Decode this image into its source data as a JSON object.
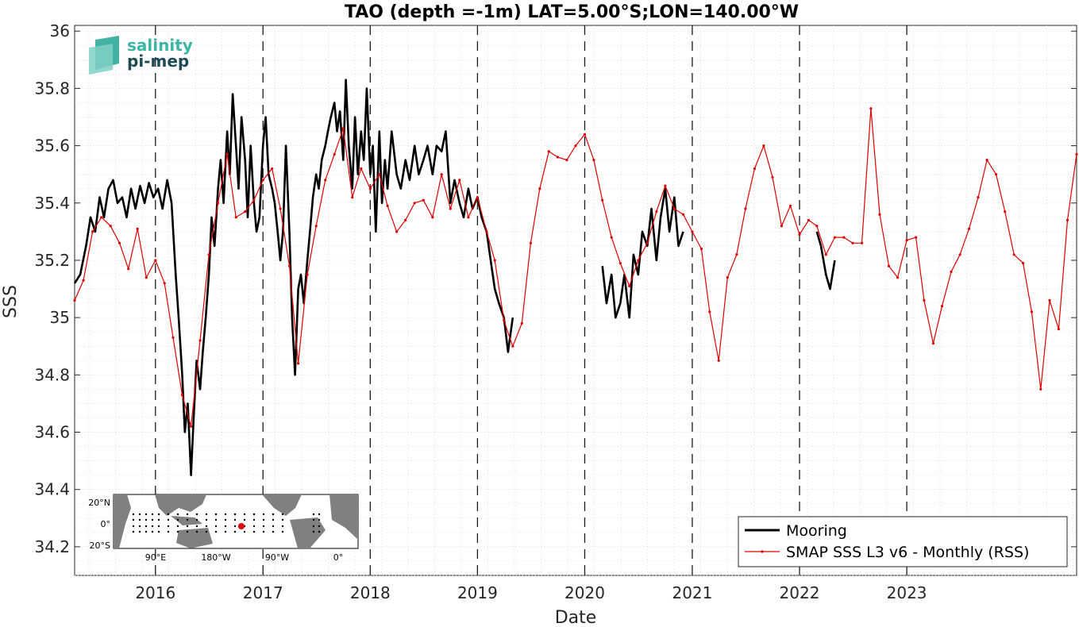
{
  "chart_data": {
    "type": "line",
    "title": "TAO (depth =-1m) LAT=5.00°S;LON=140.00°W",
    "xlabel": "Date",
    "ylabel": "SSS",
    "x_range": [
      "2015-04-01",
      "2024-08-01"
    ],
    "ylim": [
      34.1,
      36.02
    ],
    "y_ticks": [
      34.2,
      34.4,
      34.6,
      34.8,
      35,
      35.2,
      35.4,
      35.6,
      35.8,
      36
    ],
    "y_tick_labels": [
      "34.2",
      "34.4",
      "34.6",
      "34.8",
      "35",
      "35.2",
      "35.4",
      "35.6",
      "35.8",
      "36"
    ],
    "x_ticks": [
      "2016-01-01",
      "2017-01-01",
      "2018-01-01",
      "2019-01-01",
      "2020-01-01",
      "2021-01-01",
      "2022-01-01",
      "2023-01-01"
    ],
    "x_tick_labels": [
      "2016",
      "2017",
      "2018",
      "2019",
      "2020",
      "2021",
      "2022",
      "2023"
    ],
    "grid": "dotted minor grid; dashed vertical lines at year boundaries",
    "legend": {
      "placement": "bottom-right",
      "entries": [
        "Mooring",
        "SMAP SSS L3 v6 - Monthly (RSS)"
      ]
    },
    "colors": {
      "Mooring": "#000000",
      "SMAP SSS L3 v6 - Monthly (RSS)": "#e00000"
    },
    "series": [
      {
        "name": "Mooring",
        "points": [
          [
            "2015-04-01",
            35.12
          ],
          [
            "2015-04-20",
            35.15
          ],
          [
            "2015-05-10",
            35.25
          ],
          [
            "2015-05-25",
            35.35
          ],
          [
            "2015-06-10",
            35.3
          ],
          [
            "2015-06-25",
            35.42
          ],
          [
            "2015-07-10",
            35.35
          ],
          [
            "2015-07-25",
            35.45
          ],
          [
            "2015-08-10",
            35.48
          ],
          [
            "2015-08-25",
            35.4
          ],
          [
            "2015-09-10",
            35.42
          ],
          [
            "2015-09-25",
            35.35
          ],
          [
            "2015-10-10",
            35.45
          ],
          [
            "2015-10-25",
            35.38
          ],
          [
            "2015-11-10",
            35.46
          ],
          [
            "2015-11-25",
            35.4
          ],
          [
            "2015-12-10",
            35.47
          ],
          [
            "2015-12-25",
            35.42
          ],
          [
            "2016-01-10",
            35.45
          ],
          [
            "2016-01-25",
            35.38
          ],
          [
            "2016-02-10",
            35.48
          ],
          [
            "2016-02-25",
            35.4
          ],
          [
            "2016-03-10",
            35.15
          ],
          [
            "2016-03-20",
            35.0
          ],
          [
            "2016-04-01",
            34.8
          ],
          [
            "2016-04-10",
            34.6
          ],
          [
            "2016-04-20",
            34.7
          ],
          [
            "2016-05-01",
            34.45
          ],
          [
            "2016-05-10",
            34.65
          ],
          [
            "2016-05-20",
            34.85
          ],
          [
            "2016-06-01",
            34.75
          ],
          [
            "2016-06-10",
            34.88
          ],
          [
            "2016-06-20",
            35.0
          ],
          [
            "2016-07-01",
            35.15
          ],
          [
            "2016-07-10",
            35.35
          ],
          [
            "2016-07-20",
            35.25
          ],
          [
            "2016-08-01",
            35.45
          ],
          [
            "2016-08-10",
            35.55
          ],
          [
            "2016-08-20",
            35.4
          ],
          [
            "2016-09-01",
            35.65
          ],
          [
            "2016-09-10",
            35.5
          ],
          [
            "2016-09-20",
            35.78
          ],
          [
            "2016-10-01",
            35.6
          ],
          [
            "2016-10-10",
            35.45
          ],
          [
            "2016-10-20",
            35.7
          ],
          [
            "2016-11-01",
            35.55
          ],
          [
            "2016-11-10",
            35.35
          ],
          [
            "2016-11-20",
            35.6
          ],
          [
            "2016-12-01",
            35.4
          ],
          [
            "2016-12-10",
            35.3
          ],
          [
            "2016-12-20",
            35.35
          ],
          [
            "2017-01-01",
            35.6
          ],
          [
            "2017-01-10",
            35.7
          ],
          [
            "2017-01-20",
            35.5
          ],
          [
            "2017-02-01",
            35.45
          ],
          [
            "2017-02-10",
            35.4
          ],
          [
            "2017-02-20",
            35.3
          ],
          [
            "2017-03-01",
            35.2
          ],
          [
            "2017-03-10",
            35.3
          ],
          [
            "2017-03-20",
            35.6
          ],
          [
            "2017-04-01",
            35.3
          ],
          [
            "2017-04-10",
            35.0
          ],
          [
            "2017-04-20",
            34.8
          ],
          [
            "2017-05-01",
            35.1
          ],
          [
            "2017-05-10",
            35.15
          ],
          [
            "2017-05-20",
            35.05
          ],
          [
            "2017-06-01",
            35.2
          ],
          [
            "2017-06-10",
            35.3
          ],
          [
            "2017-06-20",
            35.42
          ],
          [
            "2017-07-01",
            35.5
          ],
          [
            "2017-07-10",
            35.45
          ],
          [
            "2017-07-20",
            35.55
          ],
          [
            "2017-08-01",
            35.6
          ],
          [
            "2017-08-10",
            35.65
          ],
          [
            "2017-08-20",
            35.7
          ],
          [
            "2017-09-01",
            35.75
          ],
          [
            "2017-09-10",
            35.65
          ],
          [
            "2017-09-20",
            35.72
          ],
          [
            "2017-10-01",
            35.55
          ],
          [
            "2017-10-10",
            35.83
          ],
          [
            "2017-10-20",
            35.6
          ],
          [
            "2017-11-01",
            35.45
          ],
          [
            "2017-11-10",
            35.7
          ],
          [
            "2017-11-20",
            35.5
          ],
          [
            "2017-12-01",
            35.65
          ],
          [
            "2017-12-10",
            35.55
          ],
          [
            "2017-12-20",
            35.8
          ],
          [
            "2018-01-01",
            35.5
          ],
          [
            "2018-01-10",
            35.6
          ],
          [
            "2018-01-20",
            35.3
          ],
          [
            "2018-02-01",
            35.65
          ],
          [
            "2018-02-10",
            35.4
          ],
          [
            "2018-02-20",
            35.55
          ],
          [
            "2018-03-01",
            35.45
          ],
          [
            "2018-03-15",
            35.65
          ],
          [
            "2018-04-01",
            35.5
          ],
          [
            "2018-04-15",
            35.45
          ],
          [
            "2018-05-01",
            35.55
          ],
          [
            "2018-05-15",
            35.48
          ],
          [
            "2018-06-01",
            35.6
          ],
          [
            "2018-06-15",
            35.5
          ],
          [
            "2018-07-01",
            35.55
          ],
          [
            "2018-07-15",
            35.6
          ],
          [
            "2018-08-01",
            35.5
          ],
          [
            "2018-08-15",
            35.6
          ],
          [
            "2018-09-01",
            35.58
          ],
          [
            "2018-09-15",
            35.65
          ],
          [
            "2018-10-01",
            35.4
          ],
          [
            "2018-10-15",
            35.48
          ],
          [
            "2018-11-01",
            35.4
          ],
          [
            "2018-11-15",
            35.35
          ],
          [
            "2018-12-01",
            35.45
          ],
          [
            "2018-12-15",
            35.38
          ],
          [
            "2019-01-01",
            35.42
          ],
          [
            "2019-01-15",
            35.35
          ],
          [
            "2019-02-01",
            35.3
          ],
          [
            "2019-02-15",
            35.2
          ],
          [
            "2019-03-01",
            35.1
          ],
          [
            "2019-03-15",
            35.05
          ],
          [
            "2019-04-01",
            35.0
          ],
          [
            "2019-04-15",
            34.88
          ],
          [
            "2019-05-01",
            35.0
          ],
          null,
          [
            "2020-03-01",
            35.18
          ],
          [
            "2020-03-15",
            35.05
          ],
          [
            "2020-04-01",
            35.15
          ],
          [
            "2020-04-15",
            35.0
          ],
          [
            "2020-05-01",
            35.05
          ],
          [
            "2020-05-15",
            35.15
          ],
          [
            "2020-06-01",
            35.0
          ],
          [
            "2020-06-15",
            35.22
          ],
          [
            "2020-07-01",
            35.15
          ],
          [
            "2020-07-15",
            35.3
          ],
          [
            "2020-08-01",
            35.25
          ],
          [
            "2020-08-15",
            35.38
          ],
          [
            "2020-09-01",
            35.2
          ],
          [
            "2020-09-15",
            35.35
          ],
          [
            "2020-10-01",
            35.45
          ],
          [
            "2020-10-15",
            35.3
          ],
          [
            "2020-11-01",
            35.42
          ],
          [
            "2020-11-15",
            35.25
          ],
          [
            "2020-12-01",
            35.3
          ],
          null,
          [
            "2022-03-01",
            35.3
          ],
          [
            "2022-03-15",
            35.25
          ],
          [
            "2022-04-01",
            35.15
          ],
          [
            "2022-04-15",
            35.1
          ],
          [
            "2022-05-01",
            35.2
          ]
        ]
      },
      {
        "name": "SMAP SSS L3 v6 - Monthly (RSS)",
        "points": [
          [
            "2015-04-01",
            35.06
          ],
          [
            "2015-05-01",
            35.13
          ],
          [
            "2015-06-01",
            35.3
          ],
          [
            "2015-07-01",
            35.35
          ],
          [
            "2015-08-01",
            35.32
          ],
          [
            "2015-09-01",
            35.26
          ],
          [
            "2015-10-01",
            35.17
          ],
          [
            "2015-11-01",
            35.31
          ],
          [
            "2015-12-01",
            35.14
          ],
          [
            "2016-01-01",
            35.2
          ],
          [
            "2016-02-01",
            35.12
          ],
          [
            "2016-03-01",
            34.93
          ],
          [
            "2016-04-01",
            34.73
          ],
          [
            "2016-05-01",
            34.62
          ],
          [
            "2016-06-01",
            34.92
          ],
          [
            "2016-07-01",
            35.22
          ],
          [
            "2016-08-01",
            35.4
          ],
          [
            "2016-09-01",
            35.57
          ],
          [
            "2016-10-01",
            35.35
          ],
          [
            "2016-11-01",
            35.37
          ],
          [
            "2016-12-01",
            35.41
          ],
          [
            "2017-01-01",
            35.48
          ],
          [
            "2017-02-01",
            35.52
          ],
          [
            "2017-03-01",
            35.38
          ],
          [
            "2017-04-01",
            35.18
          ],
          [
            "2017-05-01",
            34.84
          ],
          [
            "2017-06-01",
            35.15
          ],
          [
            "2017-07-01",
            35.32
          ],
          [
            "2017-08-01",
            35.48
          ],
          [
            "2017-09-01",
            35.57
          ],
          [
            "2017-10-01",
            35.66
          ],
          [
            "2017-11-01",
            35.42
          ],
          [
            "2017-12-01",
            35.52
          ],
          [
            "2018-01-01",
            35.45
          ],
          [
            "2018-02-01",
            35.5
          ],
          [
            "2018-03-01",
            35.39
          ],
          [
            "2018-04-01",
            35.3
          ],
          [
            "2018-05-01",
            35.34
          ],
          [
            "2018-06-01",
            35.4
          ],
          [
            "2018-07-01",
            35.41
          ],
          [
            "2018-08-01",
            35.35
          ],
          [
            "2018-09-01",
            35.5
          ],
          [
            "2018-10-01",
            35.38
          ],
          [
            "2018-11-01",
            35.48
          ],
          [
            "2018-12-01",
            35.35
          ],
          [
            "2019-01-01",
            35.42
          ],
          [
            "2019-02-01",
            35.3
          ],
          [
            "2019-03-01",
            35.2
          ],
          [
            "2019-04-01",
            34.99
          ],
          [
            "2019-05-01",
            34.9
          ],
          [
            "2019-06-01",
            34.98
          ],
          [
            "2019-07-01",
            35.26
          ],
          [
            "2019-08-01",
            35.45
          ],
          [
            "2019-09-01",
            35.58
          ],
          [
            "2019-10-01",
            35.56
          ],
          [
            "2019-11-01",
            35.55
          ],
          [
            "2019-12-01",
            35.6
          ],
          [
            "2020-01-01",
            35.64
          ],
          [
            "2020-02-01",
            35.55
          ],
          [
            "2020-03-01",
            35.41
          ],
          [
            "2020-04-01",
            35.28
          ],
          [
            "2020-05-01",
            35.19
          ],
          [
            "2020-06-01",
            35.11
          ],
          [
            "2020-07-01",
            35.2
          ],
          [
            "2020-08-01",
            35.26
          ],
          [
            "2020-09-01",
            35.37
          ],
          [
            "2020-10-01",
            35.46
          ],
          [
            "2020-11-01",
            35.38
          ],
          [
            "2020-12-01",
            35.36
          ],
          [
            "2021-01-01",
            35.3
          ],
          [
            "2021-02-01",
            35.24
          ],
          [
            "2021-03-01",
            35.02
          ],
          [
            "2021-04-01",
            34.85
          ],
          [
            "2021-05-01",
            35.14
          ],
          [
            "2021-06-01",
            35.22
          ],
          [
            "2021-07-01",
            35.38
          ],
          [
            "2021-08-01",
            35.52
          ],
          [
            "2021-09-01",
            35.6
          ],
          [
            "2021-10-01",
            35.49
          ],
          [
            "2021-11-01",
            35.32
          ],
          [
            "2021-12-01",
            35.39
          ],
          [
            "2022-01-01",
            35.29
          ],
          [
            "2022-02-01",
            35.34
          ],
          [
            "2022-03-01",
            35.32
          ],
          [
            "2022-04-01",
            35.22
          ],
          [
            "2022-05-01",
            35.28
          ],
          [
            "2022-06-01",
            35.28
          ],
          [
            "2022-07-01",
            35.26
          ],
          [
            "2022-08-01",
            35.26
          ],
          [
            "2022-09-01",
            35.73
          ],
          [
            "2022-10-01",
            35.36
          ],
          [
            "2022-11-01",
            35.18
          ],
          [
            "2022-12-01",
            35.14
          ],
          [
            "2023-01-01",
            35.27
          ],
          [
            "2023-02-01",
            35.28
          ],
          [
            "2023-03-01",
            35.06
          ],
          [
            "2023-04-01",
            34.91
          ],
          [
            "2023-05-01",
            35.04
          ],
          [
            "2023-06-01",
            35.16
          ],
          [
            "2023-07-01",
            35.22
          ],
          [
            "2023-08-01",
            35.31
          ],
          [
            "2023-09-01",
            35.42
          ],
          [
            "2023-10-01",
            35.55
          ],
          [
            "2023-11-01",
            35.5
          ],
          [
            "2023-12-01",
            35.37
          ],
          [
            "2024-01-01",
            35.22
          ],
          [
            "2024-02-01",
            35.19
          ],
          [
            "2024-03-01",
            35.02
          ],
          [
            "2024-04-01",
            34.75
          ],
          [
            "2024-05-01",
            35.06
          ],
          [
            "2024-06-01",
            34.96
          ],
          [
            "2024-07-01",
            35.34
          ],
          [
            "2024-08-01",
            35.57
          ]
        ]
      }
    ]
  },
  "logo": {
    "line1": "salinity",
    "line2": "pi-mep"
  },
  "inset_map": {
    "lat_labels": [
      "20°N",
      "0°",
      "20°S"
    ],
    "lon_labels": [
      "90°E",
      "180°W",
      "90°W",
      "0°"
    ],
    "marker_color": "#e00000"
  }
}
